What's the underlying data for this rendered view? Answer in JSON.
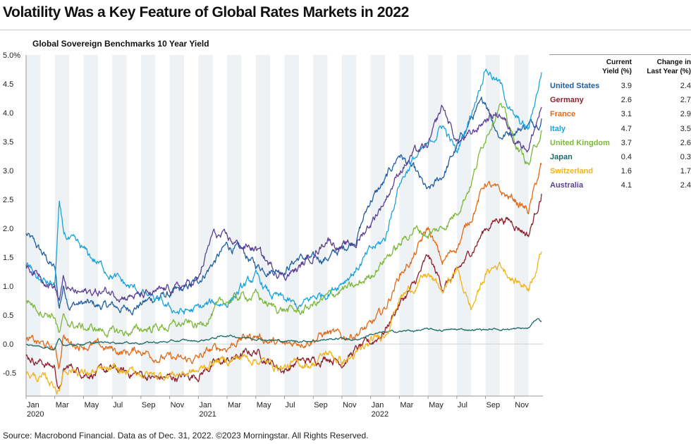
{
  "header": {
    "title": "Volatility Was a Key Feature of Global Rates Markets in 2022",
    "subtitle": "Global Sovereign Benchmarks 10 Year Yield",
    "source": "Source: Macrobond Financial. Data as of Dec. 31, 2022. ©2023 Morningstar. All Rights Reserved."
  },
  "table": {
    "col1_line1": "Current",
    "col1_line2": "Yield (%)",
    "col2_line1": "Change in",
    "col2_line2": "Last Year (%)",
    "rows": [
      {
        "name": "United States",
        "current": "3.9",
        "change": "2.4",
        "color": "#1f5fa0"
      },
      {
        "name": "Germany",
        "current": "2.6",
        "change": "2.7",
        "color": "#8e1f2b"
      },
      {
        "name": "France",
        "current": "3.1",
        "change": "2.9",
        "color": "#e06a18"
      },
      {
        "name": "Italy",
        "current": "4.7",
        "change": "3.5",
        "color": "#1aa3d9"
      },
      {
        "name": "United Kingdom",
        "current": "3.7",
        "change": "2.6",
        "color": "#7bb83a"
      },
      {
        "name": "Japan",
        "current": "0.4",
        "change": "0.3",
        "color": "#1a6a6a"
      },
      {
        "name": "Switzerland",
        "current": "1.6",
        "change": "1.7",
        "color": "#f0b41a"
      },
      {
        "name": "Australia",
        "current": "4.1",
        "change": "2.4",
        "color": "#5b3f95"
      }
    ]
  },
  "chart_data": {
    "type": "line",
    "title": "Global Sovereign Benchmarks 10 Year Yield",
    "xlabel": "",
    "ylabel": "",
    "ylim": [
      -0.9,
      5.0
    ],
    "y_ticks": [
      "5.0%",
      "4.5",
      "4.0",
      "3.5",
      "3.0",
      "2.5",
      "2.0",
      "1.5",
      "1.0",
      "0.5",
      "0.0",
      "-0.5"
    ],
    "y_tick_values": [
      5.0,
      4.5,
      4.0,
      3.5,
      3.0,
      2.5,
      2.0,
      1.5,
      1.0,
      0.5,
      0.0,
      -0.5
    ],
    "x_months": 36,
    "x_tick_labels": [
      "Jan",
      "Mar",
      "May",
      "Jul",
      "Sep",
      "Nov",
      "Jan",
      "Mar",
      "May",
      "Jul",
      "Sep",
      "Nov",
      "Jan",
      "Mar",
      "May",
      "Jul",
      "Sep",
      "Nov"
    ],
    "x_year_labels": [
      "2020",
      "2021",
      "2022"
    ],
    "shaded_bands": "alternate months",
    "series": [
      {
        "name": "United States",
        "color": "#1f5fa0",
        "x": [
          0,
          1,
          2,
          2.3,
          2.6,
          3,
          4,
          5,
          6,
          7,
          8,
          9,
          10,
          11,
          12,
          13,
          14,
          15,
          16,
          17,
          18,
          19,
          20,
          21,
          22,
          23,
          24,
          25,
          26,
          27,
          28,
          29,
          30,
          31,
          32,
          33,
          34,
          35,
          35.9
        ],
        "values": [
          1.9,
          1.6,
          1.3,
          0.6,
          1.0,
          0.7,
          0.7,
          0.65,
          0.65,
          0.6,
          0.7,
          0.8,
          0.85,
          0.92,
          1.1,
          1.4,
          1.7,
          1.6,
          1.35,
          1.3,
          1.3,
          1.5,
          1.45,
          1.5,
          1.63,
          1.85,
          2.5,
          2.8,
          3.3,
          3.0,
          2.6,
          2.9,
          3.4,
          3.9,
          4.2,
          3.6,
          3.7,
          3.8,
          3.9
        ]
      },
      {
        "name": "Germany",
        "color": "#8e1f2b",
        "x": [
          0,
          1,
          2,
          2.3,
          2.6,
          3,
          4,
          5,
          6,
          7,
          8,
          9,
          10,
          11,
          12,
          13,
          14,
          15,
          16,
          17,
          18,
          19,
          20,
          21,
          22,
          23,
          24,
          25,
          26,
          27,
          28,
          29,
          30,
          31,
          32,
          33,
          34,
          35,
          35.9
        ],
        "values": [
          -0.2,
          -0.3,
          -0.4,
          -0.82,
          -0.5,
          -0.4,
          -0.48,
          -0.5,
          -0.45,
          -0.5,
          -0.52,
          -0.6,
          -0.58,
          -0.57,
          -0.52,
          -0.35,
          -0.3,
          -0.2,
          -0.12,
          -0.3,
          -0.45,
          -0.3,
          -0.3,
          -0.2,
          -0.3,
          -0.1,
          0.0,
          0.25,
          0.7,
          1.0,
          1.5,
          1.0,
          1.2,
          1.6,
          2.0,
          2.2,
          2.1,
          1.9,
          2.6
        ]
      },
      {
        "name": "France",
        "color": "#e06a18",
        "x": [
          0,
          1,
          2,
          2.3,
          2.6,
          3,
          4,
          5,
          6,
          7,
          8,
          9,
          10,
          11,
          12,
          13,
          14,
          15,
          16,
          17,
          18,
          19,
          20,
          21,
          22,
          23,
          24,
          25,
          26,
          27,
          28,
          29,
          30,
          31,
          32,
          33,
          34,
          35,
          35.9
        ],
        "values": [
          0.05,
          0.0,
          -0.1,
          -0.4,
          0.2,
          0.0,
          0.0,
          -0.05,
          -0.1,
          -0.15,
          -0.1,
          -0.2,
          -0.25,
          -0.3,
          -0.25,
          -0.1,
          -0.05,
          0.1,
          0.15,
          0.05,
          -0.05,
          0.05,
          0.1,
          0.2,
          0.1,
          0.2,
          0.3,
          0.6,
          1.2,
          1.5,
          2.0,
          1.4,
          1.7,
          2.2,
          2.8,
          2.6,
          2.5,
          2.3,
          3.1
        ]
      },
      {
        "name": "Italy",
        "color": "#1aa3d9",
        "x": [
          0,
          1,
          2,
          2.3,
          2.6,
          3,
          4,
          5,
          6,
          7,
          8,
          9,
          10,
          11,
          12,
          13,
          14,
          15,
          16,
          17,
          18,
          19,
          20,
          21,
          22,
          23,
          24,
          25,
          26,
          27,
          28,
          29,
          30,
          31,
          32,
          33,
          34,
          35,
          35.9
        ],
        "values": [
          1.4,
          1.1,
          1.0,
          2.4,
          1.9,
          1.8,
          1.6,
          1.4,
          1.2,
          1.0,
          0.9,
          0.75,
          0.6,
          0.55,
          0.6,
          0.7,
          0.72,
          0.95,
          1.15,
          0.85,
          0.75,
          0.62,
          0.8,
          0.9,
          1.1,
          1.3,
          1.6,
          1.8,
          2.8,
          3.2,
          3.4,
          3.8,
          3.3,
          4.0,
          4.8,
          4.5,
          3.9,
          3.7,
          4.7
        ]
      },
      {
        "name": "United Kingdom",
        "color": "#7bb83a",
        "x": [
          0,
          1,
          2,
          2.3,
          2.6,
          3,
          4,
          5,
          6,
          7,
          8,
          9,
          10,
          11,
          12,
          13,
          14,
          15,
          16,
          17,
          18,
          19,
          20,
          21,
          22,
          23,
          24,
          25,
          26,
          27,
          28,
          29,
          30,
          31,
          32,
          33,
          34,
          35,
          35.9
        ],
        "values": [
          0.78,
          0.6,
          0.5,
          0.15,
          0.4,
          0.35,
          0.28,
          0.25,
          0.2,
          0.2,
          0.25,
          0.3,
          0.3,
          0.35,
          0.3,
          0.55,
          0.75,
          0.82,
          0.85,
          0.65,
          0.6,
          0.55,
          0.68,
          0.8,
          0.95,
          0.97,
          1.2,
          1.5,
          1.7,
          2.0,
          1.9,
          2.0,
          2.3,
          2.8,
          3.6,
          4.2,
          3.5,
          3.1,
          3.7
        ]
      },
      {
        "name": "Japan",
        "color": "#1a6a6a",
        "x": [
          0,
          1,
          2,
          2.3,
          2.6,
          3,
          4,
          5,
          6,
          7,
          8,
          9,
          10,
          11,
          12,
          13,
          14,
          15,
          16,
          17,
          18,
          19,
          20,
          21,
          22,
          23,
          24,
          25,
          26,
          27,
          28,
          29,
          30,
          31,
          32,
          33,
          34,
          35,
          35.6,
          35.9
        ],
        "values": [
          -0.02,
          -0.05,
          -0.1,
          0.08,
          -0.02,
          0.0,
          0.0,
          0.02,
          0.03,
          0.03,
          0.02,
          0.03,
          0.04,
          0.06,
          0.05,
          0.1,
          0.15,
          0.12,
          0.1,
          0.07,
          0.05,
          0.05,
          0.06,
          0.08,
          0.1,
          0.07,
          0.17,
          0.2,
          0.22,
          0.23,
          0.25,
          0.24,
          0.25,
          0.25,
          0.25,
          0.26,
          0.26,
          0.27,
          0.45,
          0.4
        ]
      },
      {
        "name": "Switzerland",
        "color": "#f0b41a",
        "x": [
          0,
          1,
          2,
          2.3,
          2.6,
          3,
          4,
          5,
          6,
          7,
          8,
          9,
          10,
          11,
          12,
          13,
          14,
          15,
          16,
          17,
          18,
          19,
          20,
          21,
          22,
          23,
          24,
          25,
          26,
          27,
          28,
          29,
          30,
          31,
          32,
          33,
          34,
          35,
          35.9
        ],
        "values": [
          -0.5,
          -0.6,
          -0.7,
          -0.85,
          -0.45,
          -0.4,
          -0.5,
          -0.48,
          -0.48,
          -0.5,
          -0.5,
          -0.55,
          -0.52,
          -0.5,
          -0.48,
          -0.3,
          -0.28,
          -0.22,
          -0.25,
          -0.35,
          -0.4,
          -0.35,
          -0.33,
          -0.15,
          -0.3,
          -0.2,
          0.0,
          0.2,
          0.8,
          1.0,
          1.2,
          0.9,
          1.3,
          0.6,
          1.2,
          1.4,
          1.1,
          1.0,
          1.6
        ]
      },
      {
        "name": "Australia",
        "color": "#5b3f95",
        "x": [
          0,
          1,
          2,
          2.3,
          2.6,
          3,
          4,
          5,
          6,
          7,
          8,
          9,
          10,
          11,
          12,
          13,
          14,
          15,
          16,
          17,
          18,
          19,
          20,
          21,
          22,
          23,
          24,
          25,
          26,
          27,
          28,
          29,
          30,
          31,
          32,
          33,
          34,
          35,
          35.9
        ],
        "values": [
          1.35,
          1.2,
          1.0,
          0.75,
          1.1,
          0.9,
          0.88,
          0.9,
          0.9,
          0.85,
          0.82,
          0.85,
          0.95,
          1.0,
          1.1,
          1.9,
          1.8,
          1.7,
          1.65,
          1.35,
          1.2,
          1.3,
          1.55,
          1.85,
          1.65,
          1.75,
          2.1,
          2.5,
          3.0,
          3.3,
          3.4,
          4.1,
          3.5,
          3.6,
          3.9,
          4.0,
          3.6,
          3.4,
          4.1
        ]
      }
    ]
  }
}
